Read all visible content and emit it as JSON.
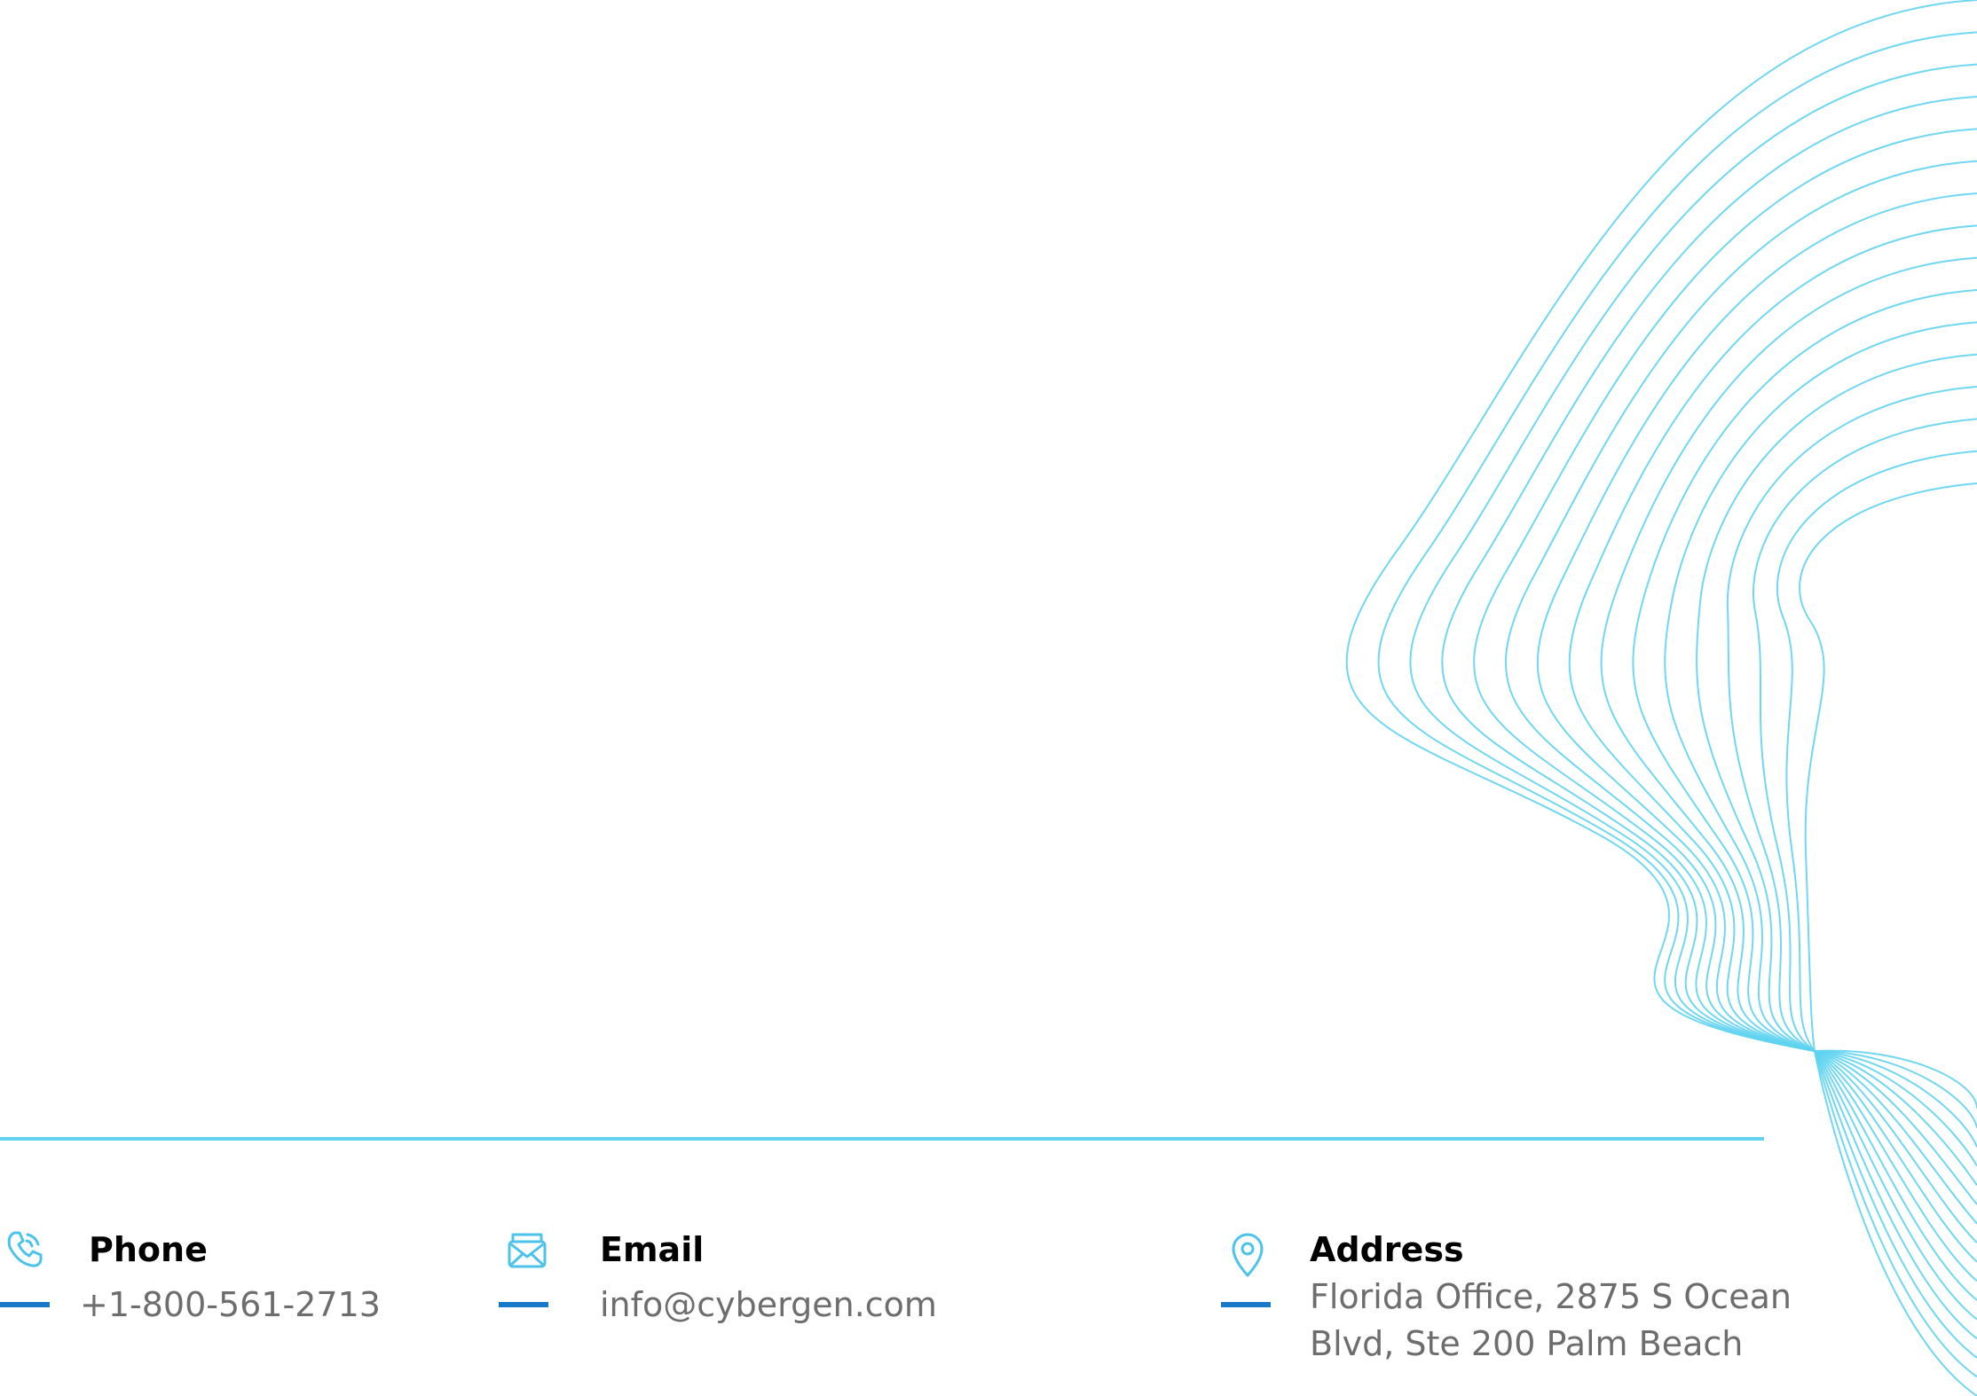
{
  "contacts": {
    "phone": {
      "label": "Phone",
      "value": "+1-800-561-2713",
      "icon": "phone-icon"
    },
    "email": {
      "label": "Email",
      "value": "info@cybergen.com",
      "icon": "envelope-icon"
    },
    "address": {
      "label": "Address",
      "value": "Florida Office, 2875 S Ocean Blvd, Ste 200 Palm Beach",
      "icon": "map-pin-icon"
    }
  },
  "colors": {
    "accent_line": "#5fd3f0",
    "dash": "#1878c8",
    "label": "#000000",
    "value": "#6d6d6d",
    "icon": "#4cc3ea"
  }
}
